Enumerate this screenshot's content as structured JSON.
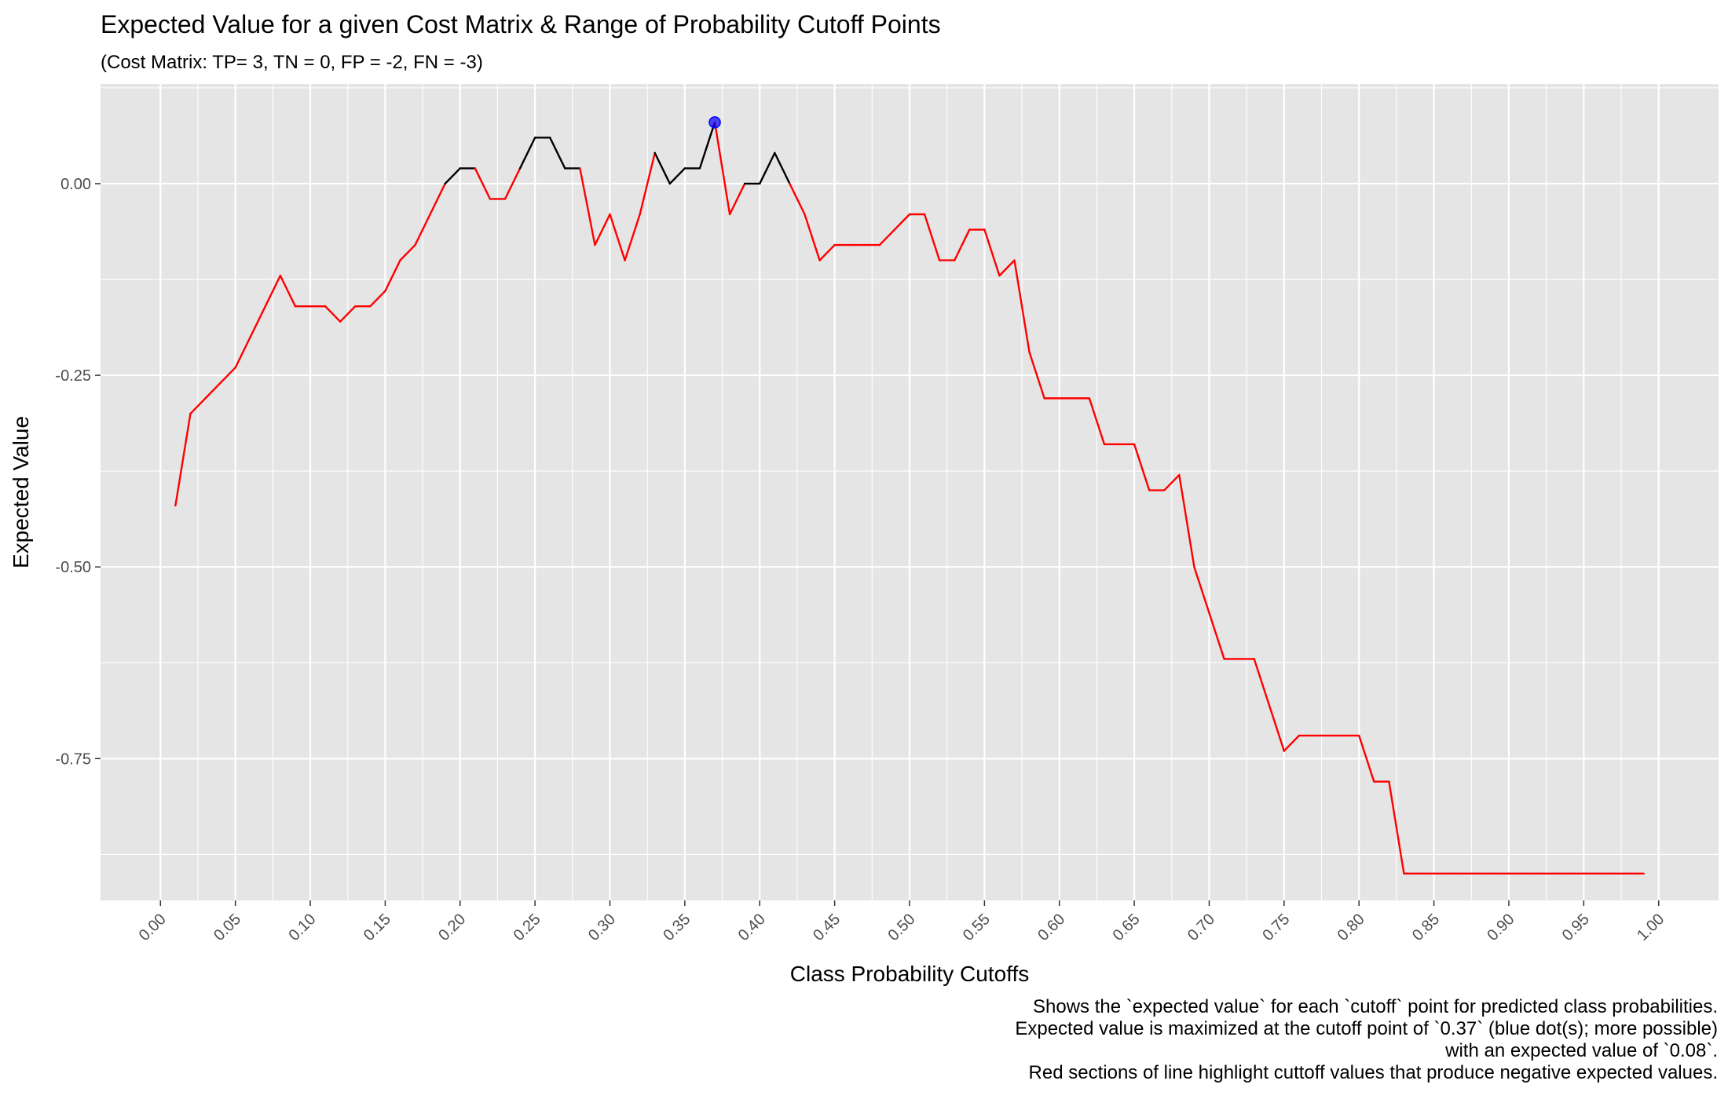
{
  "chart_data": {
    "type": "line",
    "title": "Expected Value for a given Cost Matrix & Range of Probability Cutoff Points",
    "subtitle": "(Cost Matrix: TP= 3, TN = 0, FP = -2, FN = -3)",
    "xlabel": "Class Probability Cutoffs",
    "ylabel": "Expected Value",
    "xlim": [
      -0.04,
      1.04
    ],
    "ylim": [
      -0.935,
      0.13
    ],
    "x_ticks": [
      "0.00",
      "0.05",
      "0.10",
      "0.15",
      "0.20",
      "0.25",
      "0.30",
      "0.35",
      "0.40",
      "0.45",
      "0.50",
      "0.55",
      "0.60",
      "0.65",
      "0.70",
      "0.75",
      "0.80",
      "0.85",
      "0.90",
      "0.95",
      "1.00"
    ],
    "y_ticks": [
      "0.00",
      "-0.25",
      "-0.50",
      "-0.75"
    ],
    "grid": true,
    "series": [
      {
        "color": "#ff0000",
        "negative_color": "#ff0000",
        "nonnegative_color": "#000000",
        "x": [
          0.01,
          0.02,
          0.03,
          0.04,
          0.05,
          0.06,
          0.07,
          0.08,
          0.09,
          0.1,
          0.11,
          0.12,
          0.13,
          0.14,
          0.15,
          0.16,
          0.17,
          0.18,
          0.19,
          0.2,
          0.21,
          0.22,
          0.23,
          0.24,
          0.25,
          0.26,
          0.27,
          0.28,
          0.29,
          0.3,
          0.31,
          0.32,
          0.33,
          0.34,
          0.35,
          0.36,
          0.37,
          0.38,
          0.39,
          0.4,
          0.41,
          0.42,
          0.43,
          0.44,
          0.45,
          0.46,
          0.47,
          0.48,
          0.49,
          0.5,
          0.51,
          0.52,
          0.53,
          0.54,
          0.55,
          0.56,
          0.57,
          0.58,
          0.59,
          0.6,
          0.61,
          0.62,
          0.63,
          0.64,
          0.65,
          0.66,
          0.67,
          0.68,
          0.69,
          0.7,
          0.71,
          0.72,
          0.73,
          0.74,
          0.75,
          0.76,
          0.77,
          0.78,
          0.79,
          0.8,
          0.81,
          0.82,
          0.83,
          0.84,
          0.85,
          0.86,
          0.87,
          0.88,
          0.89,
          0.9,
          0.91,
          0.92,
          0.93,
          0.94,
          0.95,
          0.96,
          0.97,
          0.98,
          0.99
        ],
        "values": [
          -0.42,
          -0.3,
          -0.28,
          -0.26,
          -0.24,
          -0.2,
          -0.16,
          -0.12,
          -0.16,
          -0.16,
          -0.16,
          -0.18,
          -0.16,
          -0.16,
          -0.14,
          -0.1,
          -0.08,
          -0.04,
          0.0,
          0.02,
          0.02,
          -0.02,
          -0.02,
          0.02,
          0.06,
          0.06,
          0.02,
          0.02,
          -0.08,
          -0.04,
          -0.1,
          -0.04,
          0.04,
          0.0,
          0.02,
          0.02,
          0.08,
          -0.04,
          0.0,
          0.0,
          0.04,
          0.0,
          -0.04,
          -0.1,
          -0.08,
          -0.08,
          -0.08,
          -0.08,
          -0.06,
          -0.04,
          -0.04,
          -0.1,
          -0.1,
          -0.06,
          -0.06,
          -0.12,
          -0.1,
          -0.22,
          -0.28,
          -0.28,
          -0.28,
          -0.28,
          -0.34,
          -0.34,
          -0.34,
          -0.4,
          -0.4,
          -0.38,
          -0.5,
          -0.56,
          -0.62,
          -0.62,
          -0.62,
          -0.68,
          -0.74,
          -0.72,
          -0.72,
          -0.72,
          -0.72,
          -0.72,
          -0.78,
          -0.78,
          -0.9,
          -0.9,
          -0.9,
          -0.9,
          -0.9,
          -0.9,
          -0.9,
          -0.9,
          -0.9,
          -0.9,
          -0.9,
          -0.9,
          -0.9,
          -0.9,
          -0.9,
          -0.9,
          -0.9
        ]
      }
    ],
    "highlight_points": [
      {
        "x": 0.37,
        "y": 0.08,
        "color": "#0000ff"
      }
    ],
    "caption_lines": [
      "Shows the `expected value` for each `cutoff` point for predicted class probabilities.",
      "Expected value is maximized at the cutoff point of `0.37` (blue dot(s); more possible)",
      "with an expected value of `0.08`.",
      "Red sections of line highlight cuttoff values that produce negative expected values."
    ],
    "panel_color": "#e5e5e5",
    "grid_color": "#ffffff"
  }
}
